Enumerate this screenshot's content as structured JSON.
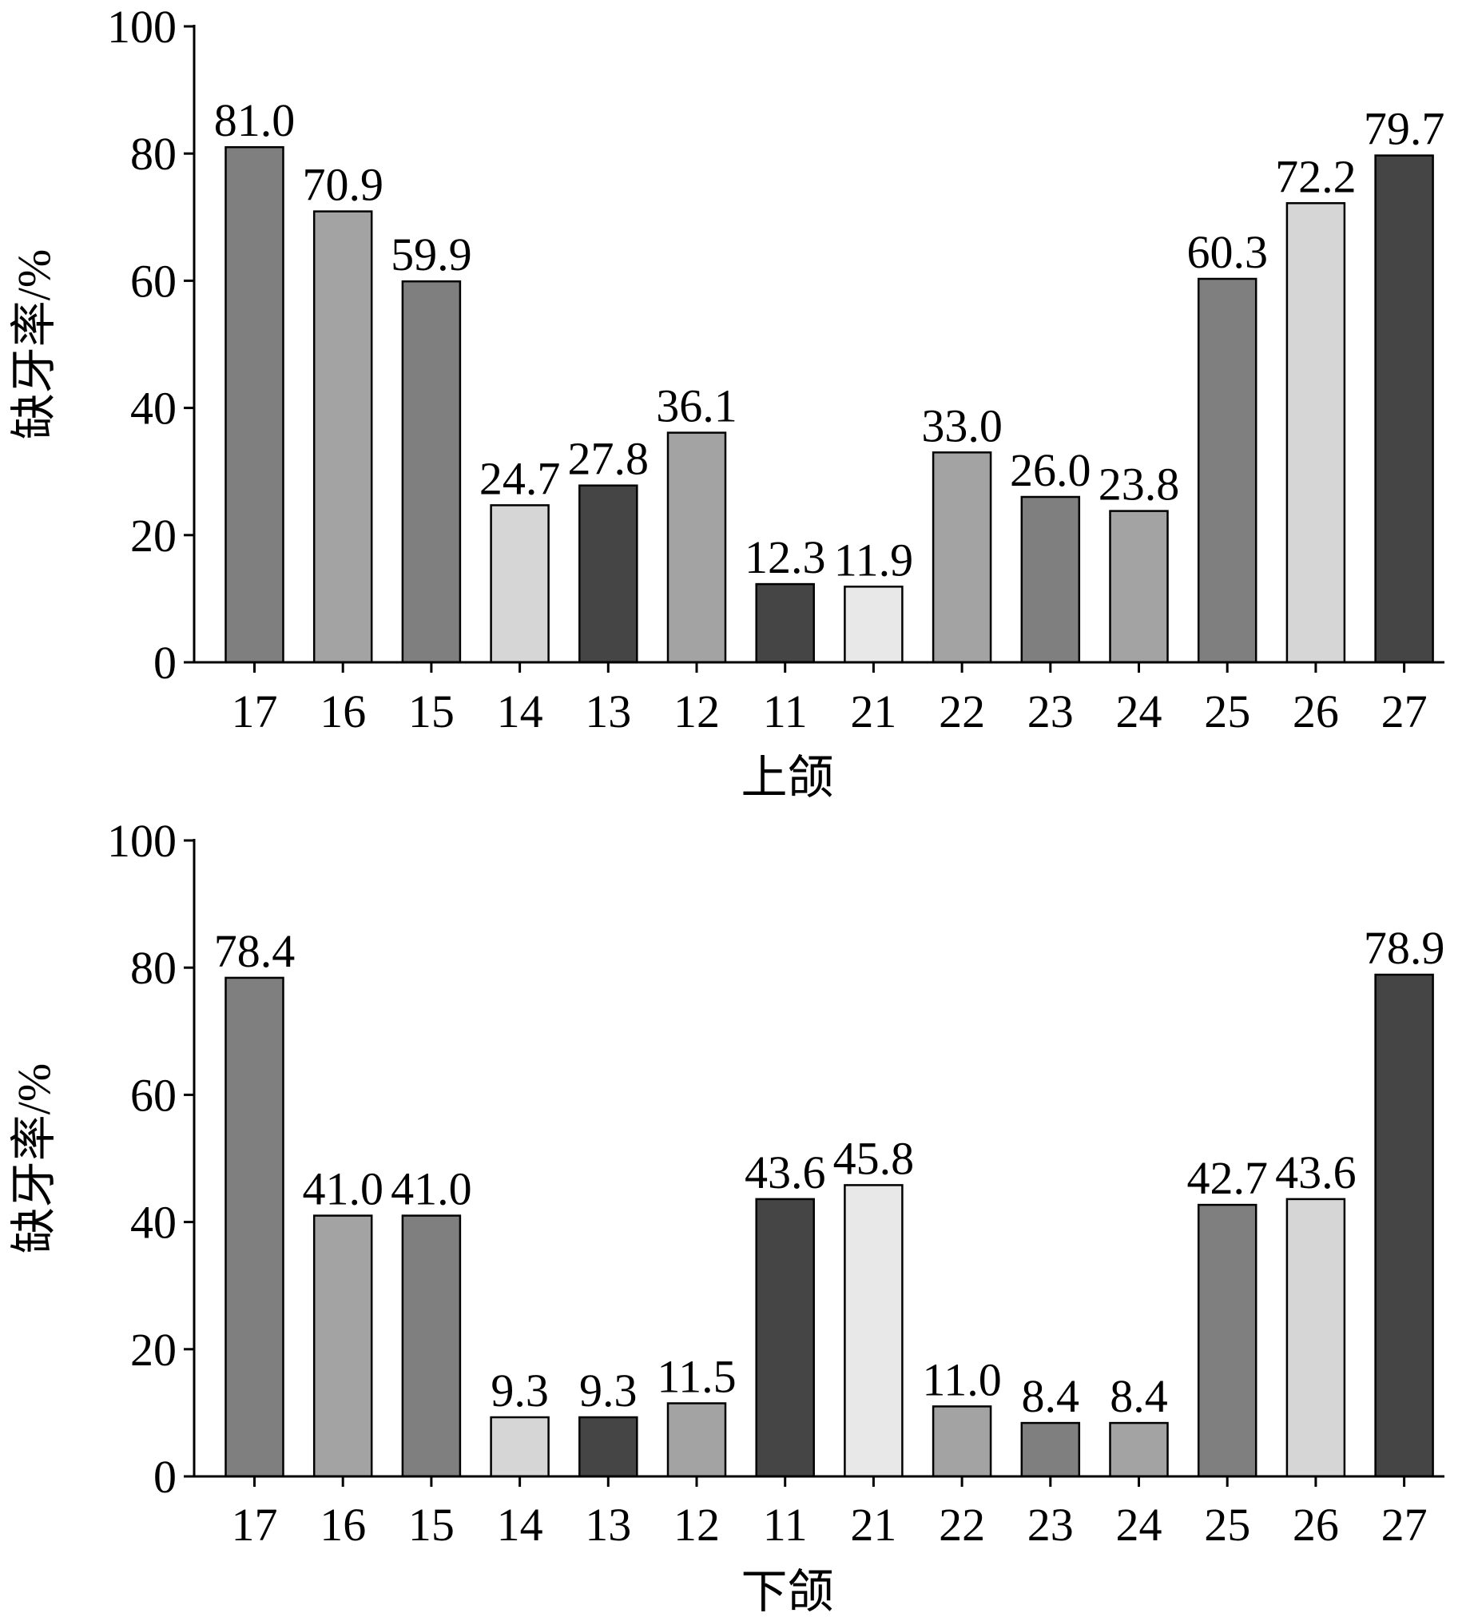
{
  "chart_data": [
    {
      "type": "bar",
      "categories": [
        "17",
        "16",
        "15",
        "14",
        "13",
        "12",
        "11",
        "21",
        "22",
        "23",
        "24",
        "25",
        "26",
        "27"
      ],
      "values": [
        81.0,
        70.9,
        59.9,
        24.7,
        27.8,
        36.1,
        12.3,
        11.9,
        33.0,
        26.0,
        23.8,
        60.3,
        72.2,
        79.7
      ],
      "data_labels": [
        "81.0",
        "70.9",
        "59.9",
        "24.7",
        "27.8",
        "36.1",
        "12.3",
        "11.9",
        "33.0",
        "26.0",
        "23.8",
        "60.3",
        "72.2",
        "79.7"
      ],
      "bar_colors": [
        "#7f7f7f",
        "#a3a3a3",
        "#7f7f7f",
        "#d6d6d6",
        "#454545",
        "#a3a3a3",
        "#454545",
        "#e8e8e8",
        "#a3a3a3",
        "#7f7f7f",
        "#a3a3a3",
        "#7f7f7f",
        "#d6d6d6",
        "#454545"
      ],
      "title": "",
      "xlabel": "上颌",
      "ylabel": "缺牙率/%",
      "ylim": [
        0,
        100
      ],
      "yticks": [
        "0",
        "20",
        "40",
        "60",
        "80",
        "100"
      ],
      "grid": false,
      "legend": "none"
    },
    {
      "type": "bar",
      "categories": [
        "17",
        "16",
        "15",
        "14",
        "13",
        "12",
        "11",
        "21",
        "22",
        "23",
        "24",
        "25",
        "26",
        "27"
      ],
      "values": [
        78.4,
        41.0,
        41.0,
        9.3,
        9.3,
        11.5,
        43.6,
        45.8,
        11.0,
        8.4,
        8.4,
        42.7,
        43.6,
        78.9
      ],
      "data_labels": [
        "78.4",
        "41.0",
        "41.0",
        "9.3",
        "9.3",
        "11.5",
        "43.6",
        "45.8",
        "11.0",
        "8.4",
        "8.4",
        "42.7",
        "43.6",
        "78.9"
      ],
      "bar_colors": [
        "#7f7f7f",
        "#a3a3a3",
        "#7f7f7f",
        "#d6d6d6",
        "#454545",
        "#a3a3a3",
        "#454545",
        "#e8e8e8",
        "#a3a3a3",
        "#7f7f7f",
        "#a3a3a3",
        "#7f7f7f",
        "#d6d6d6",
        "#454545"
      ],
      "title": "",
      "xlabel": "下颌",
      "ylabel": "缺牙率/%",
      "ylim": [
        0,
        100
      ],
      "yticks": [
        "0",
        "20",
        "40",
        "60",
        "80",
        "100"
      ],
      "grid": false,
      "legend": "none"
    }
  ]
}
